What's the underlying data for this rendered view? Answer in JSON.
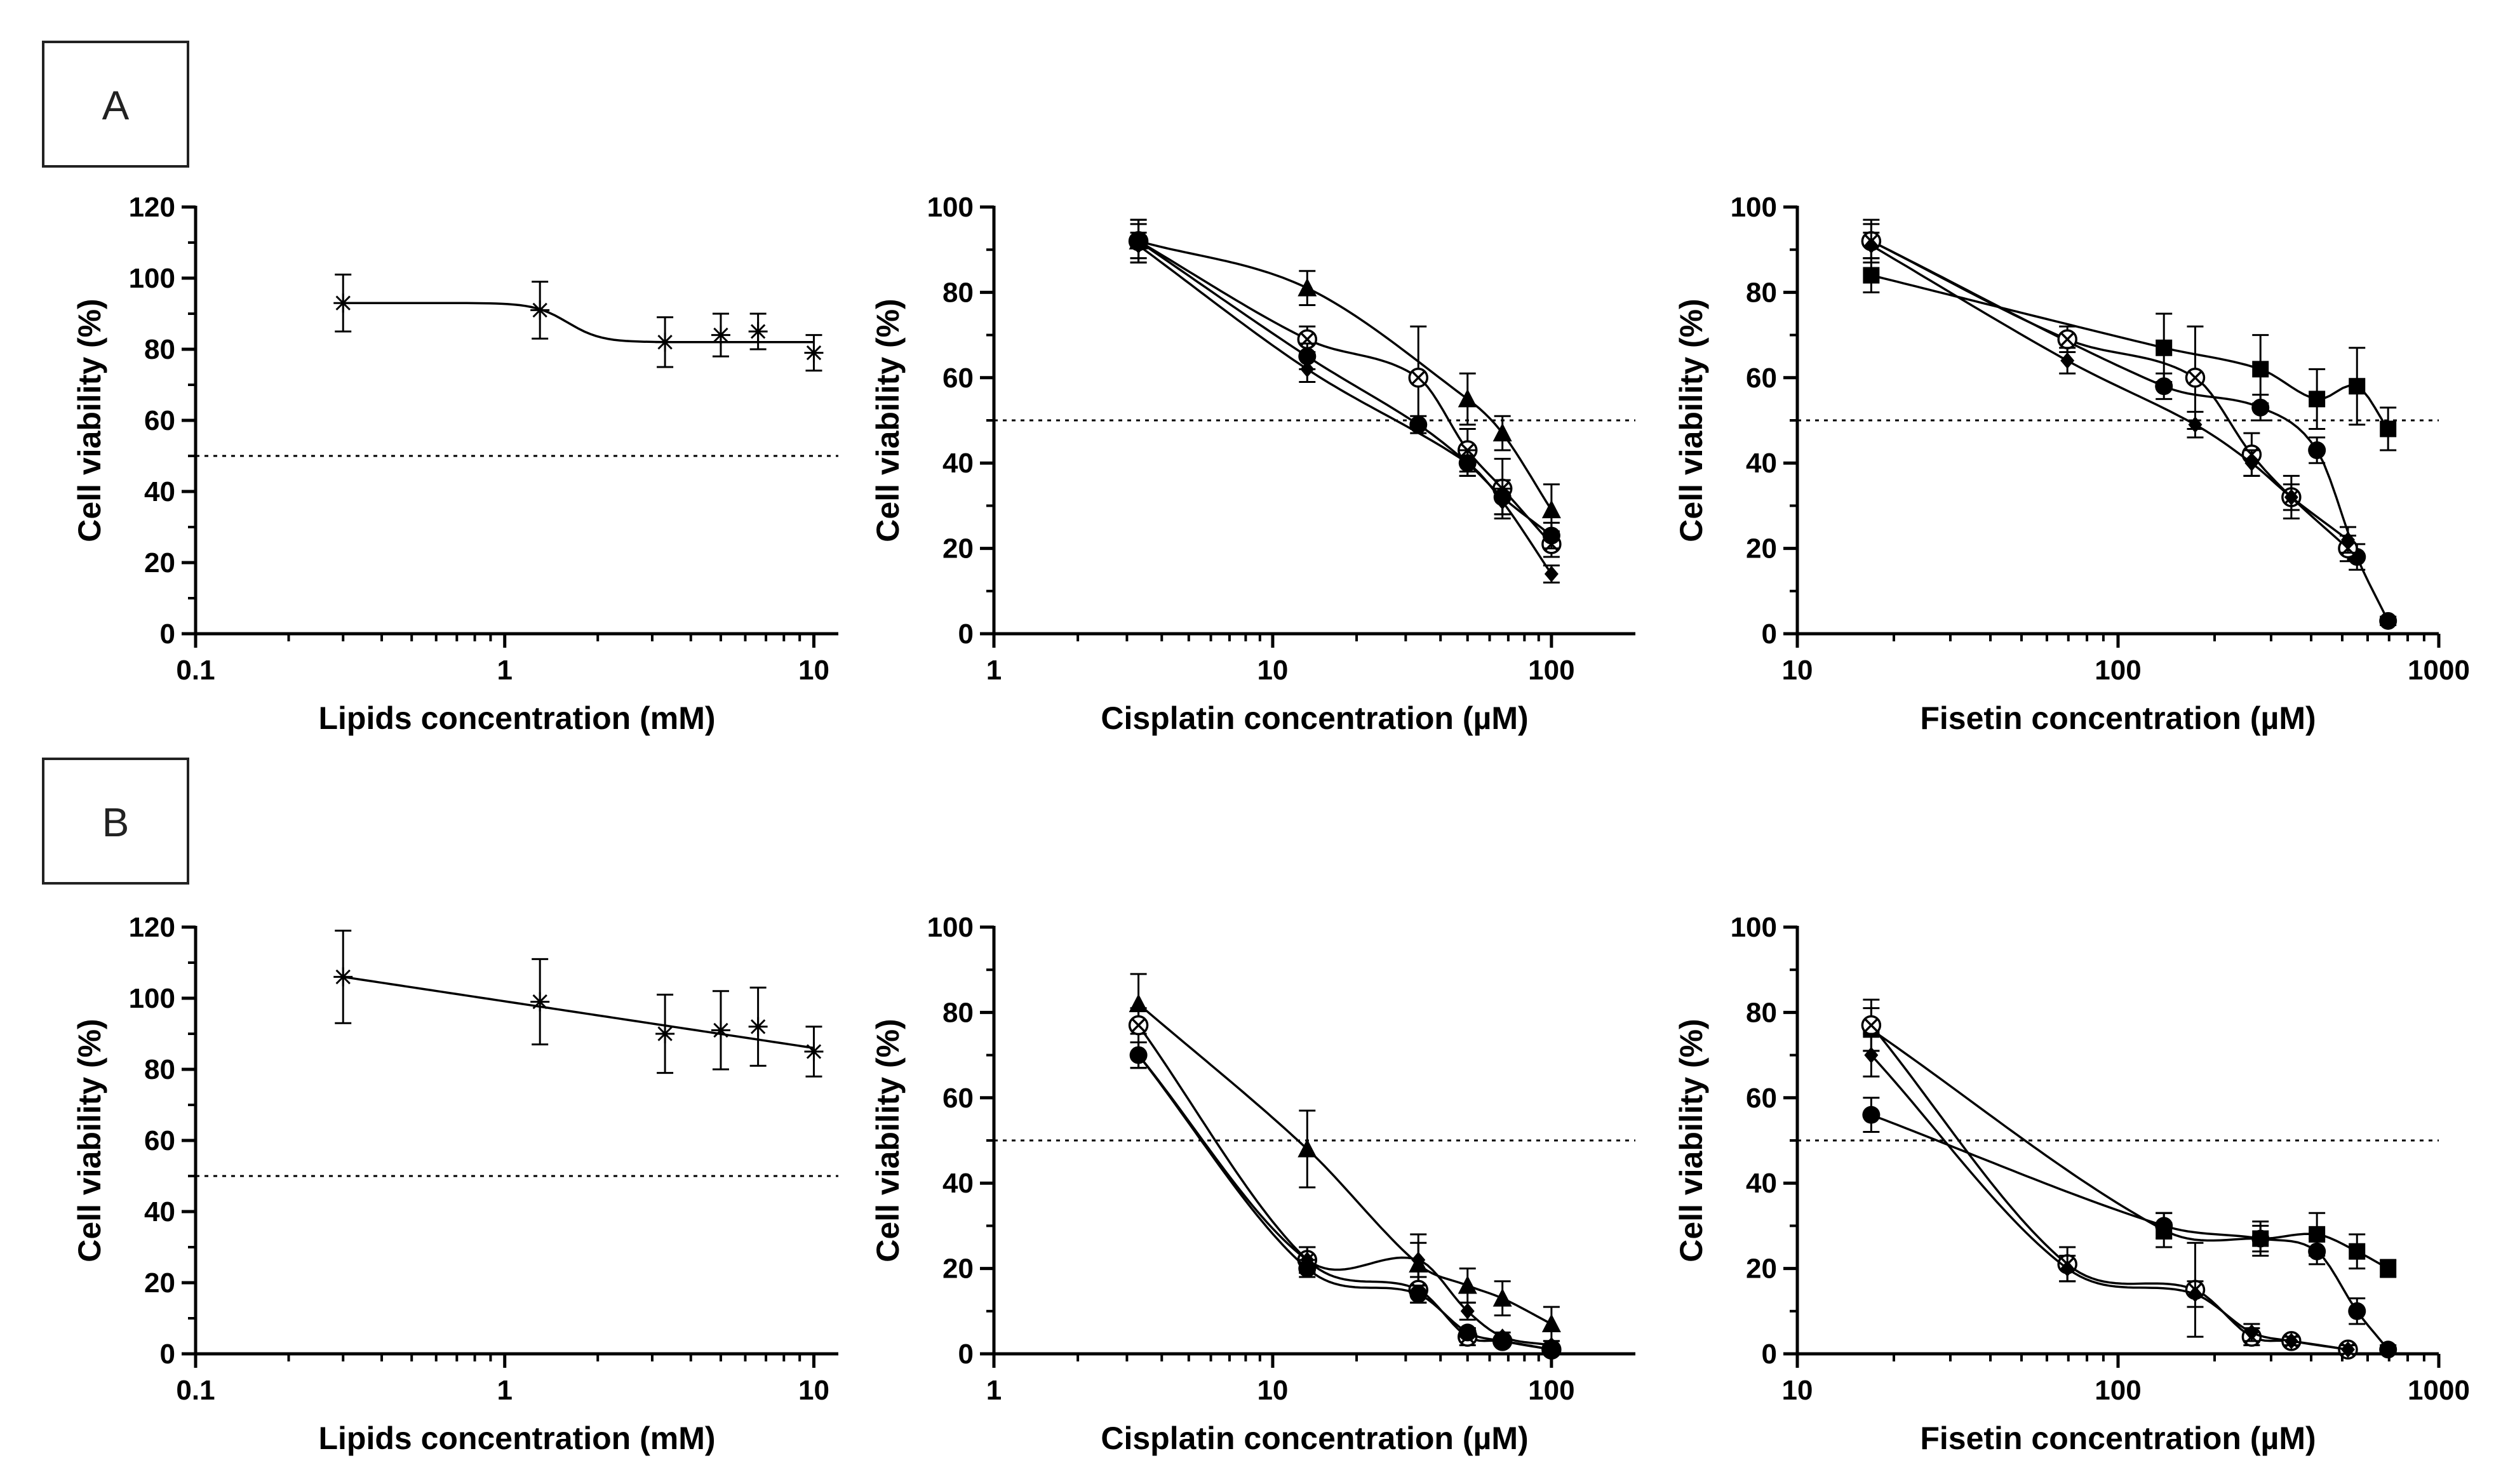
{
  "panel_labels": {
    "a": "A",
    "b": "B"
  },
  "colors": {
    "ink": "#000000",
    "background": "#ffffff"
  },
  "chart_data": [
    {
      "id": "A1",
      "row": "A",
      "type": "scatter",
      "xscale": "log",
      "xlabel": "Lipids concentration (mM)",
      "ylabel": "Cell viability (%)",
      "xlim": [
        0.1,
        12
      ],
      "ylim": [
        0,
        120
      ],
      "xticks": [
        0.1,
        1,
        10
      ],
      "xtick_labels": [
        "0.1",
        "1",
        "10"
      ],
      "yticks": [
        0,
        20,
        40,
        60,
        80,
        100,
        120
      ],
      "ytick_labels": [
        "0",
        "20",
        "40",
        "60",
        "80",
        "100",
        "120"
      ],
      "reference_line_y": 50,
      "grid": false,
      "series": [
        {
          "name": "Lipids",
          "marker": "asterisk",
          "x": [
            0.3,
            1.3,
            3.3,
            5,
            6.6,
            10
          ],
          "y": [
            93,
            91,
            82,
            84,
            85,
            79
          ],
          "err": [
            8,
            8,
            7,
            6,
            5,
            5
          ],
          "fit": {
            "type": "step",
            "top": 93,
            "bottom": 82,
            "mid": 1.6,
            "hill": 8
          }
        }
      ]
    },
    {
      "id": "A2",
      "row": "A",
      "type": "scatter",
      "xscale": "log",
      "xlabel": "Cisplatin concentration (µM)",
      "ylabel": "Cell viability (%)",
      "xlim": [
        1,
        200
      ],
      "ylim": [
        0,
        100
      ],
      "xticks": [
        1,
        10,
        100
      ],
      "xtick_labels": [
        "1",
        "10",
        "100"
      ],
      "yticks": [
        0,
        20,
        40,
        60,
        80,
        100
      ],
      "ytick_labels": [
        "0",
        "20",
        "40",
        "60",
        "80",
        "100"
      ],
      "reference_line_y": 50,
      "grid": false,
      "series": [
        {
          "name": "triangle",
          "marker": "triangle",
          "x": [
            3.3,
            13.3,
            50,
            66.7,
            100
          ],
          "y": [
            92,
            81,
            55,
            47,
            29
          ],
          "err": [
            5,
            4,
            6,
            4,
            6
          ]
        },
        {
          "name": "circle-x",
          "marker": "circle-cross",
          "x": [
            3.3,
            13.3,
            33.3,
            50,
            66.7,
            100
          ],
          "y": [
            92,
            69,
            60,
            43,
            34,
            21
          ],
          "err": [
            5,
            3,
            12,
            5,
            7,
            3
          ]
        },
        {
          "name": "circle",
          "marker": "circle",
          "x": [
            3.3,
            13.3,
            33.3,
            50,
            66.7,
            100
          ],
          "y": [
            92,
            65,
            49,
            40,
            32,
            23
          ],
          "err": [
            4,
            3,
            2,
            3,
            4,
            3
          ]
        },
        {
          "name": "diamond",
          "marker": "diamond",
          "x": [
            3.3,
            13.3,
            50,
            66.7,
            100
          ],
          "y": [
            91,
            62,
            40,
            31,
            14
          ],
          "err": [
            3,
            3,
            3,
            3,
            2
          ]
        }
      ]
    },
    {
      "id": "A3",
      "row": "A",
      "type": "scatter",
      "xscale": "log",
      "xlabel": "Fisetin concentration (µM)",
      "ylabel": "Cell viability (%)",
      "xlim": [
        10,
        1000
      ],
      "ylim": [
        0,
        100
      ],
      "xticks": [
        10,
        100,
        1000
      ],
      "xtick_labels": [
        "10",
        "100",
        "1000"
      ],
      "yticks": [
        0,
        20,
        40,
        60,
        80,
        100
      ],
      "ytick_labels": [
        "0",
        "20",
        "40",
        "60",
        "80",
        "100"
      ],
      "reference_line_y": 50,
      "grid": false,
      "series": [
        {
          "name": "square",
          "marker": "square",
          "x": [
            17,
            139,
            278,
            417,
            556,
            695
          ],
          "y": [
            84,
            67,
            62,
            55,
            58,
            48
          ],
          "err": [
            4,
            8,
            8,
            7,
            9,
            5
          ]
        },
        {
          "name": "circle",
          "marker": "circle",
          "x": [
            17,
            139,
            278,
            417,
            556,
            695
          ],
          "y": [
            92,
            58,
            53,
            43,
            18,
            3
          ],
          "err": [
            5,
            3,
            3,
            3,
            3,
            1
          ]
        },
        {
          "name": "circle-x",
          "marker": "circle-cross",
          "x": [
            17,
            69.5,
            174,
            261,
            347,
            521
          ],
          "y": [
            92,
            69,
            60,
            42,
            32,
            20
          ],
          "err": [
            4,
            3,
            12,
            5,
            5,
            3
          ]
        },
        {
          "name": "diamond",
          "marker": "diamond",
          "x": [
            17,
            69.5,
            174,
            261,
            347,
            521
          ],
          "y": [
            91,
            64,
            49,
            40,
            32,
            22
          ],
          "err": [
            3,
            3,
            3,
            3,
            3,
            3
          ]
        }
      ]
    },
    {
      "id": "B1",
      "row": "B",
      "type": "scatter",
      "xscale": "log",
      "xlabel": "Lipids concentration (mM)",
      "ylabel": "Cell viability (%)",
      "xlim": [
        0.1,
        12
      ],
      "ylim": [
        0,
        120
      ],
      "xticks": [
        0.1,
        1,
        10
      ],
      "xtick_labels": [
        "0.1",
        "1",
        "10"
      ],
      "yticks": [
        0,
        20,
        40,
        60,
        80,
        100,
        120
      ],
      "ytick_labels": [
        "0",
        "20",
        "40",
        "60",
        "80",
        "100",
        "120"
      ],
      "reference_line_y": 50,
      "grid": false,
      "series": [
        {
          "name": "Lipids",
          "marker": "asterisk",
          "x": [
            0.3,
            1.3,
            3.3,
            5,
            6.6,
            10
          ],
          "y": [
            106,
            99,
            90,
            91,
            92,
            85
          ],
          "err": [
            13,
            12,
            11,
            11,
            11,
            7
          ],
          "fit": {
            "type": "loglinear",
            "y_at_x1": 106,
            "y_at_x2": 86,
            "x1": 0.3,
            "x2": 10
          }
        }
      ]
    },
    {
      "id": "B2",
      "row": "B",
      "type": "scatter",
      "xscale": "log",
      "xlabel": "Cisplatin concentration (µM)",
      "ylabel": "Cell viability (%)",
      "xlim": [
        1,
        200
      ],
      "ylim": [
        0,
        100
      ],
      "xticks": [
        1,
        10,
        100
      ],
      "xtick_labels": [
        "1",
        "10",
        "100"
      ],
      "yticks": [
        0,
        20,
        40,
        60,
        80,
        100
      ],
      "ytick_labels": [
        "0",
        "20",
        "40",
        "60",
        "80",
        "100"
      ],
      "reference_line_y": 50,
      "grid": false,
      "series": [
        {
          "name": "triangle",
          "marker": "triangle",
          "x": [
            3.3,
            13.3,
            33.3,
            50,
            66.7,
            100
          ],
          "y": [
            82,
            48,
            21,
            16,
            13,
            7
          ],
          "err": [
            7,
            9,
            7,
            4,
            4,
            4
          ]
        },
        {
          "name": "circle-x",
          "marker": "circle-cross",
          "x": [
            3.3,
            13.3,
            33.3,
            50,
            66.7,
            100
          ],
          "y": [
            77,
            22,
            15,
            4,
            3,
            1
          ],
          "err": [
            4,
            3,
            3,
            2,
            1,
            1
          ]
        },
        {
          "name": "circle",
          "marker": "circle",
          "x": [
            3.3,
            13.3,
            33.3,
            50,
            66.7,
            100
          ],
          "y": [
            70,
            20,
            14,
            5,
            3,
            1
          ],
          "err": [
            3,
            2,
            2,
            1,
            1,
            1
          ]
        },
        {
          "name": "diamond",
          "marker": "diamond",
          "x": [
            3.3,
            13.3,
            33.3,
            50,
            66.7,
            100
          ],
          "y": [
            70,
            22,
            22,
            10,
            4,
            2
          ],
          "err": [
            3,
            3,
            4,
            2,
            1,
            1
          ]
        }
      ]
    },
    {
      "id": "B3",
      "row": "B",
      "type": "scatter",
      "xscale": "log",
      "xlabel": "Fisetin concentration (µM)",
      "ylabel": "Cell viability (%)",
      "xlim": [
        10,
        1000
      ],
      "ylim": [
        0,
        100
      ],
      "xticks": [
        10,
        100,
        1000
      ],
      "xtick_labels": [
        "10",
        "100",
        "1000"
      ],
      "yticks": [
        0,
        20,
        40,
        60,
        80,
        100
      ],
      "ytick_labels": [
        "0",
        "20",
        "40",
        "60",
        "80",
        "100"
      ],
      "reference_line_y": 50,
      "grid": false,
      "series": [
        {
          "name": "square",
          "marker": "square",
          "x": [
            17,
            139,
            278,
            417,
            556,
            695
          ],
          "y": [
            76,
            29,
            27,
            28,
            24,
            20
          ],
          "err": [
            5,
            4,
            4,
            5,
            4,
            2
          ]
        },
        {
          "name": "circle",
          "marker": "circle",
          "x": [
            17,
            139,
            278,
            417,
            556,
            695
          ],
          "y": [
            56,
            30,
            27,
            24,
            10,
            1
          ],
          "err": [
            4,
            3,
            3,
            3,
            3,
            1
          ]
        },
        {
          "name": "circle-x",
          "marker": "circle-cross",
          "x": [
            17,
            69.5,
            174,
            261,
            347,
            521
          ],
          "y": [
            77,
            21,
            15,
            4,
            3,
            1
          ],
          "err": [
            6,
            4,
            11,
            2,
            1,
            1
          ]
        },
        {
          "name": "diamond",
          "marker": "diamond",
          "x": [
            17,
            69.5,
            174,
            261,
            347,
            521
          ],
          "y": [
            70,
            20,
            14,
            5,
            3,
            1
          ],
          "err": [
            5,
            3,
            3,
            2,
            1,
            1
          ]
        }
      ]
    }
  ]
}
